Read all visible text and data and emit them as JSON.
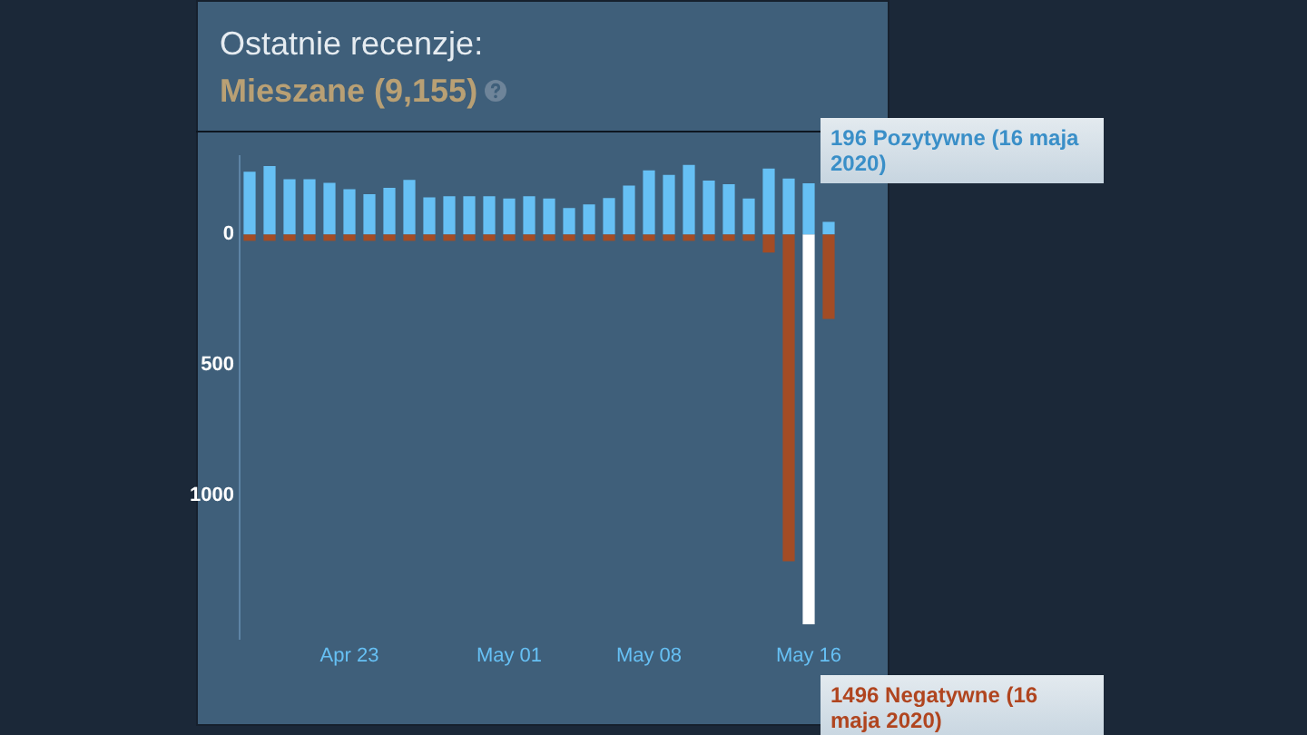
{
  "chart_data": {
    "type": "bar",
    "title": "Ostatnie recenzje:",
    "subtitle": "Mieszane (9,155)",
    "categories": [
      null,
      null,
      null,
      null,
      null,
      "Apr 23",
      null,
      null,
      null,
      null,
      null,
      null,
      null,
      "May 01",
      null,
      null,
      null,
      null,
      null,
      null,
      "May 08",
      null,
      null,
      null,
      null,
      null,
      null,
      null,
      "May 16",
      null
    ],
    "stacked": true,
    "series": [
      {
        "color": "#66c0f4",
        "values": [
          240,
          262,
          211,
          211,
          197,
          173,
          154,
          178,
          209,
          142,
          146,
          146,
          146,
          137,
          146,
          137,
          101,
          115,
          139,
          187,
          245,
          228,
          266,
          206,
          192,
          137,
          252,
          214,
          196,
          48
        ]
      },
      {
        "color": "#a34c25",
        "colors": [
          "#a34c25",
          "#a34c25",
          "#a34c25",
          "#a34c25",
          "#a34c25",
          "#a34c25",
          "#a34c25",
          "#a34c25",
          "#a34c25",
          "#a34c25",
          "#a34c25",
          "#a34c25",
          "#a34c25",
          "#a34c25",
          "#a34c25",
          "#a34c25",
          "#a34c25",
          "#a34c25",
          "#a34c25",
          "#a34c25",
          "#a34c25",
          "#a34c25",
          "#a34c25",
          "#a34c25",
          "#a34c25",
          "#a34c25",
          "#a34c25",
          "#a34c25",
          "#ffffff",
          "#a34c25"
        ],
        "values": [
          -25,
          -25,
          -25,
          -25,
          -25,
          -25,
          -25,
          -25,
          -25,
          -25,
          -25,
          -25,
          -25,
          -25,
          -25,
          -25,
          -25,
          -25,
          -25,
          -25,
          -25,
          -25,
          -25,
          -25,
          -25,
          -25,
          -70,
          -1254,
          -1496,
          -325
        ]
      }
    ],
    "ylim": [
      -1550,
      300
    ],
    "yticks": [
      {
        "value": 0,
        "label": "0"
      },
      {
        "value": -500,
        "label": "500"
      },
      {
        "value": -1000,
        "label": "1000"
      }
    ],
    "grid": false,
    "legend": false,
    "annotations": [
      {
        "text": "196 Pozytywne (16 maja 2020)",
        "x": "May 16",
        "y": 196
      },
      {
        "text": "1496 Negatywne (16 maja 2020)",
        "x": "May 16",
        "y": -1496
      }
    ]
  }
}
